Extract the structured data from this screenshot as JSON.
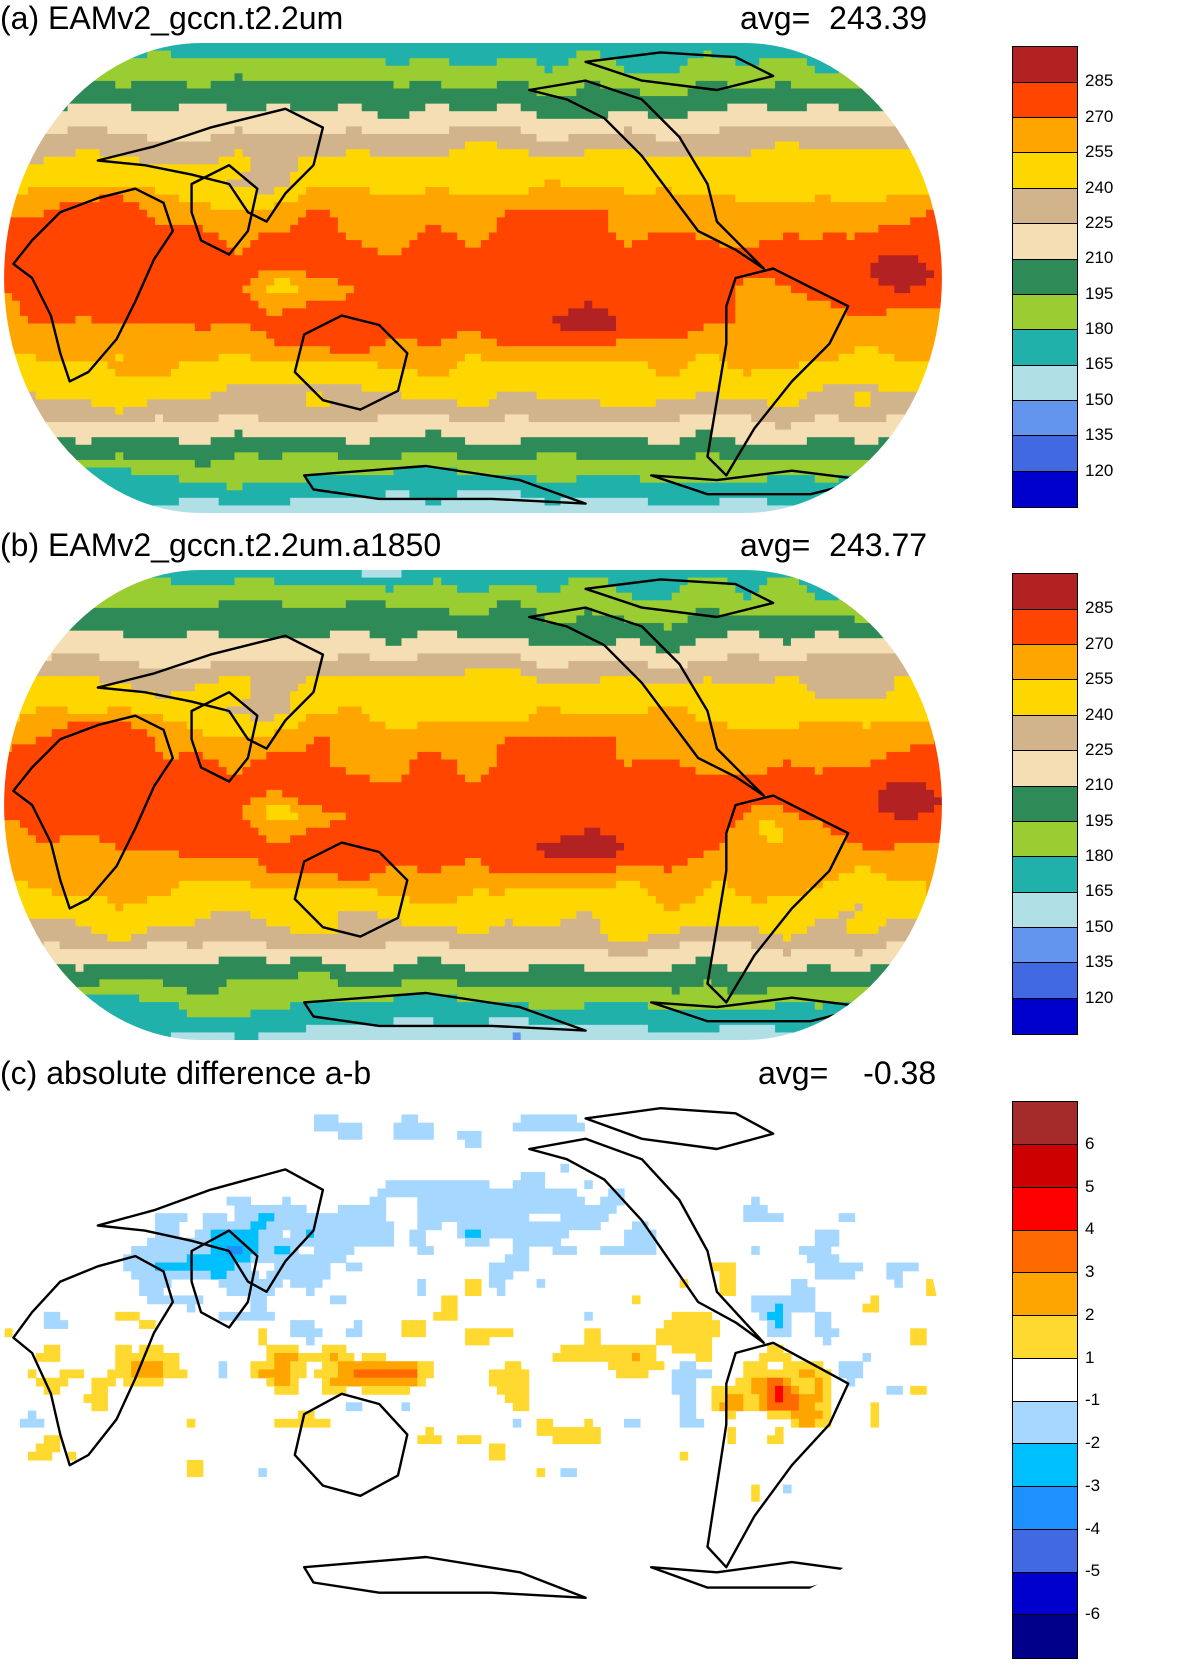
{
  "panels": [
    {
      "title": "(a) EAMv2_gccn.t2.2um",
      "avg_label": "avg=",
      "avg_value": "243.39",
      "field": "a",
      "colorbar": {
        "labels": [
          "285",
          "270",
          "255",
          "240",
          "225",
          "210",
          "195",
          "180",
          "165",
          "150",
          "135",
          "120"
        ],
        "colors": [
          "#b22222",
          "#ff4500",
          "#ffa500",
          "#ffd700",
          "#d2b48c",
          "#f5deb3",
          "#2e8b57",
          "#9acd32",
          "#20b2aa",
          "#b0e0e6",
          "#6495ed",
          "#4169e1",
          "#0000cd"
        ]
      }
    },
    {
      "title": "(b) EAMv2_gccn.t2.2um.a1850",
      "avg_label": "avg=",
      "avg_value": "243.77",
      "field": "b",
      "colorbar": {
        "labels": [
          "285",
          "270",
          "255",
          "240",
          "225",
          "210",
          "195",
          "180",
          "165",
          "150",
          "135",
          "120"
        ],
        "colors": [
          "#b22222",
          "#ff4500",
          "#ffa500",
          "#ffd700",
          "#d2b48c",
          "#f5deb3",
          "#2e8b57",
          "#9acd32",
          "#20b2aa",
          "#b0e0e6",
          "#6495ed",
          "#4169e1",
          "#0000cd"
        ]
      }
    },
    {
      "title": "(c) absolute difference a-b",
      "avg_label": "avg=",
      "avg_value": "-0.38",
      "field": "diff",
      "colorbar": {
        "labels": [
          "6",
          "5",
          "4",
          "3",
          "2",
          "1",
          "-1",
          "-2",
          "-3",
          "-4",
          "-5",
          "-6"
        ],
        "colors": [
          "#a52a2a",
          "#cd0000",
          "#ff0000",
          "#ff6a00",
          "#ffa500",
          "#ffd92f",
          "#ffffff",
          "#a6d8ff",
          "#00bfff",
          "#1e90ff",
          "#4169e1",
          "#0000cd",
          "#00008b"
        ]
      }
    }
  ]
}
